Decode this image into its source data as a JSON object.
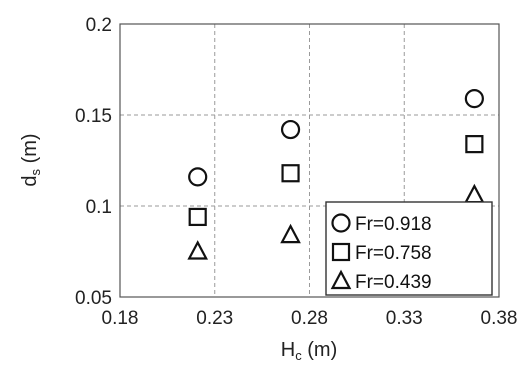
{
  "chart_data": {
    "type": "scatter",
    "title": "",
    "xlabel_main": "H",
    "xlabel_sub": "c",
    "xlabel_unit": " (m)",
    "ylabel_main": "d",
    "ylabel_sub": "s",
    "ylabel_unit": " (m)",
    "xlim": [
      0.18,
      0.38
    ],
    "ylim": [
      0.05,
      0.2
    ],
    "x_ticks": [
      0.18,
      0.23,
      0.28,
      0.33,
      0.38
    ],
    "x_tick_labels": [
      "0.18",
      "0.23",
      "0.28",
      "0.33",
      "0.38"
    ],
    "y_ticks": [
      0.05,
      0.1,
      0.15,
      0.2
    ],
    "y_tick_labels": [
      "0.05",
      "0.1",
      "0.15",
      "0.2"
    ],
    "grid": true,
    "legend_position": "bottom-right",
    "series": [
      {
        "name": "Fr=0.918",
        "marker": "circle",
        "points": [
          {
            "x": 0.221,
            "y": 0.116
          },
          {
            "x": 0.27,
            "y": 0.142
          },
          {
            "x": 0.367,
            "y": 0.159
          }
        ]
      },
      {
        "name": "Fr=0.758",
        "marker": "square",
        "points": [
          {
            "x": 0.221,
            "y": 0.094
          },
          {
            "x": 0.27,
            "y": 0.118
          },
          {
            "x": 0.367,
            "y": 0.134
          }
        ]
      },
      {
        "name": "Fr=0.439",
        "marker": "triangle",
        "points": [
          {
            "x": 0.221,
            "y": 0.075
          },
          {
            "x": 0.27,
            "y": 0.084
          },
          {
            "x": 0.367,
            "y": 0.106
          }
        ]
      }
    ],
    "colors": {
      "marker": "#111111",
      "grid": "#9a9a9a",
      "frame": "#555555"
    }
  }
}
